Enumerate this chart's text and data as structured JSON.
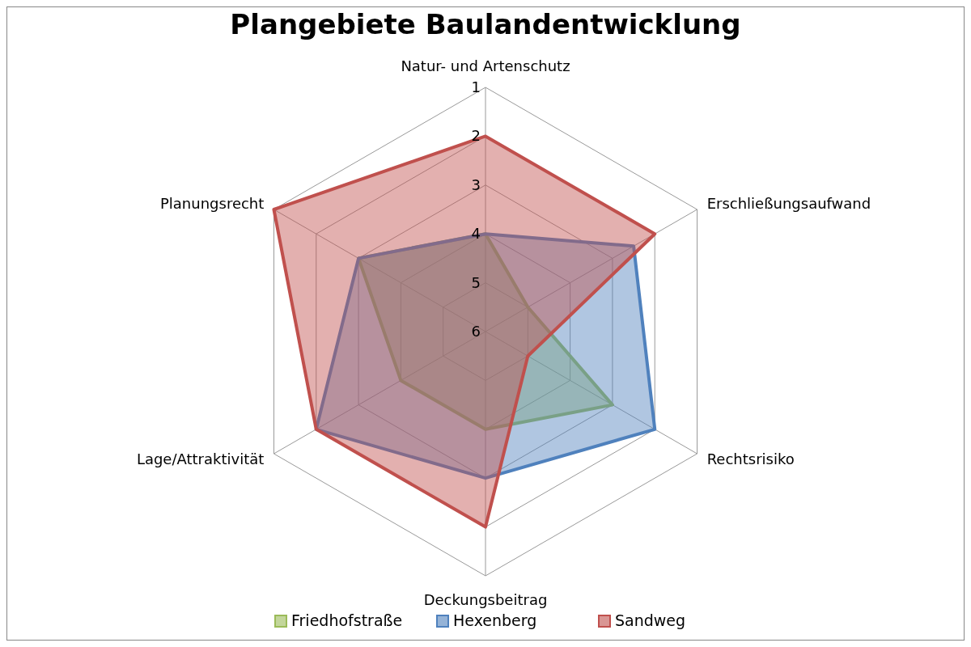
{
  "chart_data": {
    "type": "radar",
    "title": "Plangebiete Baulandentwicklung",
    "categories": [
      "Natur- und Artenschutz",
      "Erschließungsaufwand",
      "Rechtsrisiko",
      "Deckungsbeitrag",
      "Lage/Attraktivität",
      "Planungsrecht"
    ],
    "series": [
      {
        "name": "Friedhofstraße",
        "color": "#9bbb59",
        "values": [
          4,
          5,
          3,
          4,
          4,
          3
        ]
      },
      {
        "name": "Hexenberg",
        "color": "#4f81bd",
        "values": [
          4,
          2.5,
          2,
          3,
          2,
          3
        ]
      },
      {
        "name": "Sandweg",
        "color": "#c0504d",
        "values": [
          2,
          2,
          5,
          2,
          2,
          1
        ]
      }
    ],
    "ylim": [
      6,
      1
    ],
    "yticks": [
      1,
      2,
      3,
      4,
      5,
      6
    ],
    "grid": true,
    "legend": "bottom"
  }
}
